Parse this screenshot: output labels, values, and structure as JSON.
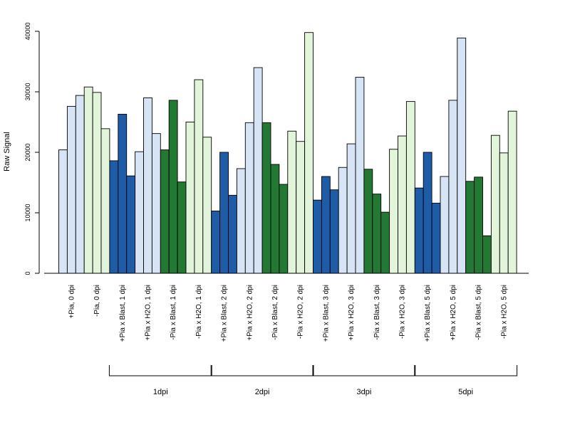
{
  "chart_data": {
    "type": "bar",
    "ylabel": "Raw Signal",
    "ylim": [
      0,
      40000
    ],
    "yticks": [
      0,
      10000,
      20000,
      30000,
      40000
    ],
    "grid": false,
    "categories": [
      "+Pia, 0 dpi",
      "-Pia, 0 dpi",
      "+Pia x Blast, 1 dpi",
      "+Pia x H2O, 1 dpi",
      "-Pia x Blast, 1 dpi",
      "-Pia x H2O, 1 dpi",
      "+Pia x Blast, 2 dpi",
      "+Pia x H2O, 2 dpi",
      "-Pia x Blast, 2 dpi",
      "-Pia x H2O, 2 dpi",
      "+Pia x Blast, 3 dpi",
      "+Pia x H2O, 3 dpi",
      "-Pia x Blast, 3 dpi",
      "-Pia x H2O, 3 dpi",
      "+Pia x Blast, 5 dpi",
      "+Pia x H2O, 5 dpi",
      "-Pia x Blast, 5 dpi",
      "-Pia x H2O, 5 dpi"
    ],
    "values": [
      [
        20400,
        27600,
        29400
      ],
      [
        30800,
        29900,
        23900
      ],
      [
        18600,
        26300,
        16100
      ],
      [
        20100,
        29000,
        23100
      ],
      [
        20400,
        28600,
        15100
      ],
      [
        25000,
        32000,
        22500
      ],
      [
        10300,
        20000,
        12900
      ],
      [
        17300,
        24900,
        34000
      ],
      [
        24900,
        18000,
        14700
      ],
      [
        23500,
        21800,
        39800
      ],
      [
        12100,
        16000,
        13800
      ],
      [
        17500,
        21400,
        32400
      ],
      [
        17200,
        13100,
        10100
      ],
      [
        20500,
        22700,
        28400
      ],
      [
        14100,
        20000,
        11600
      ],
      [
        16000,
        28600,
        38900
      ],
      [
        15200,
        15900,
        6200
      ],
      [
        22800,
        19900,
        26800
      ]
    ],
    "bar_colors": [
      "#d6e4f5",
      "#e2f5da",
      "#1f5ca8",
      "#d6e4f5",
      "#237833",
      "#e2f5da",
      "#1f5ca8",
      "#d6e4f5",
      "#237833",
      "#e2f5da",
      "#1f5ca8",
      "#d6e4f5",
      "#237833",
      "#e2f5da",
      "#1f5ca8",
      "#d6e4f5",
      "#237833",
      "#e2f5da"
    ],
    "group_brackets": [
      {
        "label": "1dpi",
        "from": 2,
        "to": 5
      },
      {
        "label": "2dpi",
        "from": 6,
        "to": 9
      },
      {
        "label": "3dpi",
        "from": 10,
        "to": 13
      },
      {
        "label": "5dpi",
        "from": 14,
        "to": 17
      }
    ]
  }
}
